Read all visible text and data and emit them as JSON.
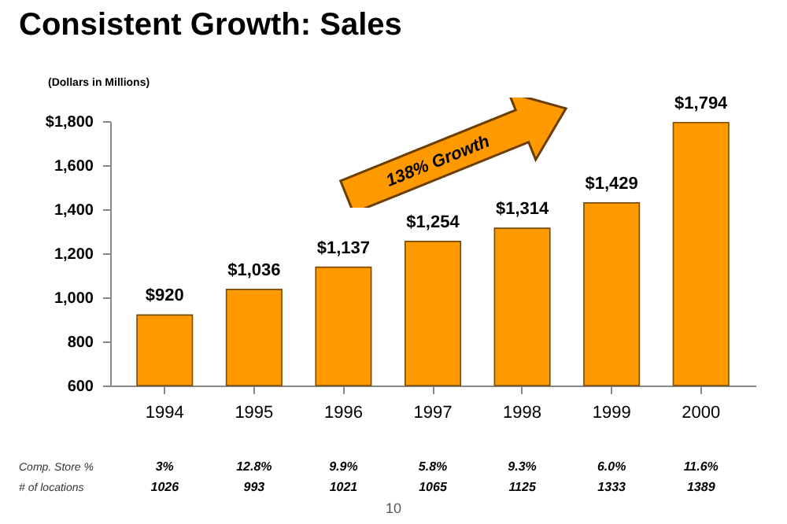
{
  "chart_data": {
    "type": "bar",
    "title": "Consistent Growth:  Sales",
    "ylabel": "(Dollars in Millions)",
    "categories": [
      "1994",
      "1995",
      "1996",
      "1997",
      "1998",
      "1999",
      "2000"
    ],
    "values": [
      920,
      1036,
      1137,
      1254,
      1314,
      1429,
      1794
    ],
    "value_labels": [
      "$920",
      "$1,036",
      "$1,137",
      "$1,254",
      "$1,314",
      "$1,429",
      "$1,794"
    ],
    "color": "#ff9900",
    "ylim": [
      600,
      1800
    ],
    "yticks": [
      {
        "value": 600,
        "label": "600"
      },
      {
        "value": 800,
        "label": "800"
      },
      {
        "value": 1000,
        "label": "1,000"
      },
      {
        "value": 1200,
        "label": "1,200"
      },
      {
        "value": 1400,
        "label": "1,400"
      },
      {
        "value": 1600,
        "label": "1,600"
      },
      {
        "value": 1800,
        "label": "$1,800"
      }
    ],
    "grid": false,
    "annotations": [
      "138% Growth",
      "Comp. Store %",
      "3%",
      "12.8%",
      "9.9%",
      "5.8%",
      "9.3%",
      "6.0%",
      "11.6%",
      "# of locations",
      "1026",
      "993",
      "1021",
      "1065",
      "1125",
      "1333",
      "1389",
      "10"
    ]
  }
}
